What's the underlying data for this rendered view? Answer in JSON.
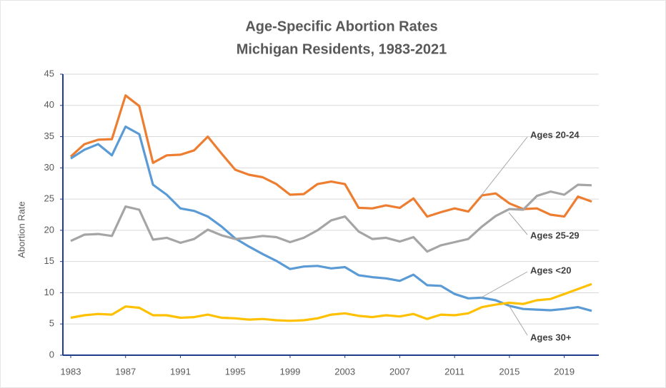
{
  "chart_data": {
    "type": "line",
    "title": [
      "Age-Specific Abortion Rates",
      "Michigan Residents, 1983-2021"
    ],
    "y_label": "Abortion Rate",
    "x": [
      1983,
      1984,
      1985,
      1986,
      1987,
      1988,
      1989,
      1990,
      1991,
      1992,
      1993,
      1994,
      1995,
      1996,
      1997,
      1998,
      1999,
      2000,
      2001,
      2002,
      2003,
      2004,
      2005,
      2006,
      2007,
      2008,
      2009,
      2010,
      2011,
      2012,
      2013,
      2014,
      2015,
      2016,
      2017,
      2018,
      2019,
      2020,
      2021
    ],
    "xlim": [
      1983,
      2021
    ],
    "xticks": [
      1983,
      1987,
      1991,
      1995,
      1999,
      2003,
      2007,
      2011,
      2015,
      2019
    ],
    "ylim": [
      0,
      45
    ],
    "yticks": [
      0,
      5,
      10,
      15,
      20,
      25,
      30,
      35,
      40,
      45
    ],
    "grid": true,
    "series": [
      {
        "name": "Ages 20-24",
        "color": "#ED7D31",
        "values": [
          31.8,
          33.8,
          34.5,
          34.6,
          41.6,
          39.9,
          30.8,
          32.0,
          32.1,
          32.8,
          35.0,
          32.3,
          29.7,
          28.9,
          28.5,
          27.4,
          25.7,
          25.8,
          27.4,
          27.8,
          27.4,
          23.6,
          23.5,
          24.0,
          23.6,
          25.1,
          22.2,
          22.9,
          23.5,
          23.0,
          25.6,
          25.9,
          24.3,
          23.4,
          23.5,
          22.5,
          22.2,
          25.4,
          24.6
        ]
      },
      {
        "name": "Ages <20",
        "color": "#5B9BD5",
        "values": [
          31.5,
          32.9,
          33.8,
          32.0,
          36.6,
          35.4,
          27.3,
          25.7,
          23.5,
          23.1,
          22.2,
          20.6,
          18.7,
          17.4,
          16.2,
          15.1,
          13.8,
          14.2,
          14.3,
          13.9,
          14.1,
          12.8,
          12.5,
          12.3,
          11.9,
          12.9,
          11.2,
          11.1,
          9.8,
          9.1,
          9.2,
          8.8,
          7.9,
          7.4,
          7.3,
          7.2,
          7.4,
          7.7,
          7.1
        ]
      },
      {
        "name": "Ages 25-29",
        "color": "#A5A5A5",
        "values": [
          18.3,
          19.3,
          19.4,
          19.1,
          23.8,
          23.3,
          18.5,
          18.8,
          18.0,
          18.6,
          20.1,
          19.2,
          18.6,
          18.8,
          19.1,
          18.9,
          18.1,
          18.8,
          20.0,
          21.6,
          22.2,
          19.8,
          18.6,
          18.8,
          18.2,
          18.9,
          16.6,
          17.6,
          18.1,
          18.6,
          20.6,
          22.3,
          23.4,
          23.3,
          25.5,
          26.2,
          25.7,
          27.3,
          27.2
        ]
      },
      {
        "name": "Ages 30+",
        "color": "#FFC000",
        "values": [
          6.0,
          6.4,
          6.6,
          6.5,
          7.8,
          7.6,
          6.4,
          6.4,
          6.0,
          6.1,
          6.5,
          6.0,
          5.9,
          5.7,
          5.8,
          5.6,
          5.5,
          5.6,
          5.9,
          6.5,
          6.7,
          6.3,
          6.1,
          6.4,
          6.2,
          6.6,
          5.8,
          6.5,
          6.4,
          6.7,
          7.7,
          8.1,
          8.4,
          8.2,
          8.8,
          9.0,
          9.8,
          10.6,
          11.4
        ]
      }
    ]
  }
}
